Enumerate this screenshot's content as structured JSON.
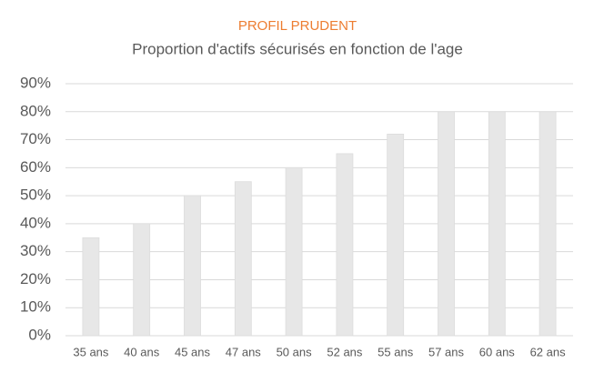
{
  "chart_data": {
    "type": "bar",
    "title": "PROFIL PRUDENT",
    "subtitle": "Proportion d'actifs sécurisés en fonction de l'age",
    "categories": [
      "35 ans",
      "40 ans",
      "45 ans",
      "47 ans",
      "50 ans",
      "52 ans",
      "55 ans",
      "57 ans",
      "60 ans",
      "62 ans"
    ],
    "values": [
      35,
      40,
      50,
      55,
      60,
      65,
      72,
      80,
      80,
      80
    ],
    "color": "#e7e7e7",
    "ylim": [
      0,
      90
    ],
    "yticks": [
      {
        "value": 0,
        "label": "0%"
      },
      {
        "value": 10,
        "label": "10%"
      },
      {
        "value": 20,
        "label": "20%"
      },
      {
        "value": 30,
        "label": "30%"
      },
      {
        "value": 40,
        "label": "40%"
      },
      {
        "value": 50,
        "label": "50%"
      },
      {
        "value": 60,
        "label": "60%"
      },
      {
        "value": 70,
        "label": "70%"
      },
      {
        "value": 80,
        "label": "80%"
      },
      {
        "value": 90,
        "label": "90%"
      }
    ],
    "grid": true
  }
}
